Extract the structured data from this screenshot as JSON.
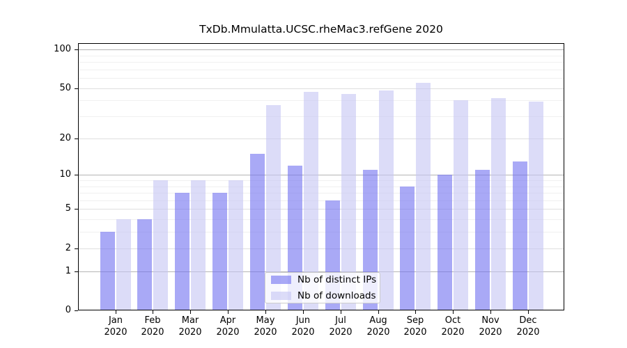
{
  "chart_data": {
    "type": "bar",
    "title": "TxDb.Mmulatta.UCSC.rheMac3.refGene 2020",
    "year": "2020",
    "categories": [
      "Jan",
      "Feb",
      "Mar",
      "Apr",
      "May",
      "Jun",
      "Jul",
      "Aug",
      "Sep",
      "Oct",
      "Nov",
      "Dec"
    ],
    "series": [
      {
        "name": "Nb of distinct IPs",
        "color": "#a9a9f7",
        "fill": "rgba(112,112,240,0.6)",
        "values": [
          3,
          4,
          7,
          7,
          15,
          12,
          6,
          11,
          8,
          10,
          11,
          13
        ]
      },
      {
        "name": "Nb of downloads",
        "color": "#dcdcf8",
        "fill": "rgba(197,197,243,0.6)",
        "values": [
          4,
          9,
          9,
          9,
          37,
          47,
          45,
          48,
          55,
          40,
          42,
          39
        ]
      }
    ],
    "yscale": "log10(1+x)",
    "ylim": [
      0,
      112
    ],
    "yticks": [
      0,
      1,
      2,
      5,
      10,
      20,
      50,
      100
    ],
    "minor_gridlines": [
      3,
      4,
      6,
      7,
      8,
      9,
      30,
      40,
      60,
      70,
      80,
      90
    ],
    "grid": true,
    "legend_position": "lower center inside",
    "grid_colors": {
      "decade": "#b4b4b4",
      "major": "#dedede",
      "minor": "#f0f0f0"
    }
  }
}
